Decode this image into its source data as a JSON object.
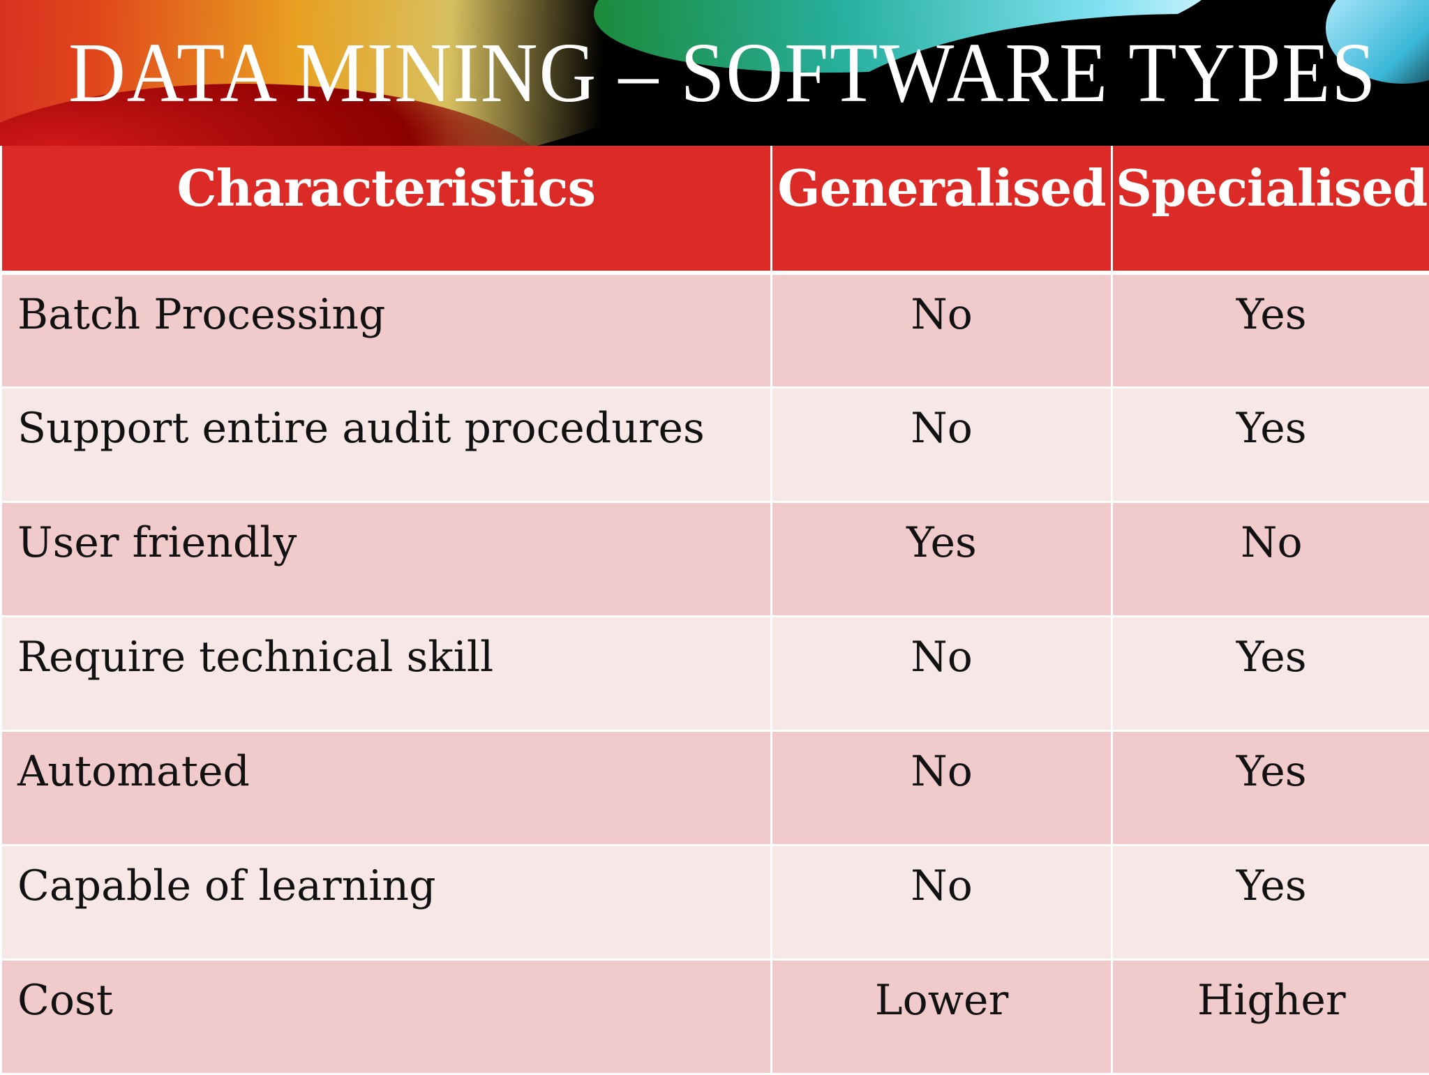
{
  "title": "DATA MINING – SOFTWARE TYPES",
  "table": {
    "headers": [
      "Characteristics",
      "Generalised",
      "Specialised"
    ],
    "rows": [
      [
        "Batch Processing",
        "No",
        "Yes"
      ],
      [
        "Support entire audit procedures",
        "No",
        "Yes"
      ],
      [
        "User friendly",
        "Yes",
        "No"
      ],
      [
        "Require technical skill",
        "No",
        "Yes"
      ],
      [
        "Automated",
        "No",
        "Yes"
      ],
      [
        "Capable of learning",
        "No",
        "Yes"
      ],
      [
        "Cost",
        "Lower",
        "Higher"
      ]
    ]
  },
  "colors": {
    "header_bg": "#dc2b27",
    "row_odd": "#f1cbcb",
    "row_even": "#f8e7e7"
  }
}
